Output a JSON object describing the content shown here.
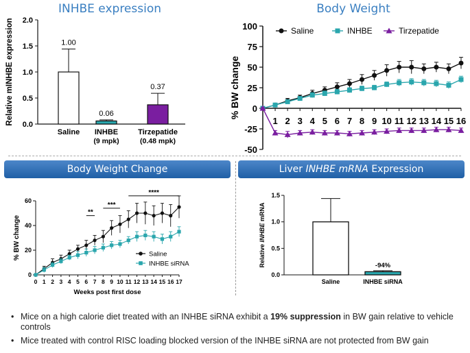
{
  "chart_data": [
    {
      "type": "bar",
      "title": "INHBE expression",
      "ylabel": "Relative mINHBE expression",
      "ylim": [
        0,
        2.0
      ],
      "yticks": [
        "0.0",
        "0.5",
        "1.0",
        "1.5",
        "2.0"
      ],
      "categories": [
        [
          "Saline",
          ""
        ],
        [
          "INHBE",
          "(9 mpk)"
        ],
        [
          "Tirzepatide",
          "(0.48 mpk)"
        ]
      ],
      "values": [
        1.0,
        0.06,
        0.37
      ],
      "errors": [
        0.44,
        0.02,
        0.22
      ],
      "labels": [
        "1.00",
        "0.06",
        "0.37"
      ],
      "colors": [
        "#ffffff",
        "#2aa6ad",
        "#7a1ea0"
      ]
    },
    {
      "type": "line",
      "title": "Body Weight",
      "ylabel": "% BW change",
      "ylim": [
        -50,
        100
      ],
      "yticks": [
        "-50",
        "-25",
        "0",
        "25",
        "50",
        "75",
        "100"
      ],
      "x": [
        0,
        1,
        2,
        3,
        4,
        5,
        6,
        7,
        8,
        9,
        10,
        11,
        12,
        13,
        14,
        15,
        16
      ],
      "xticks": [
        "1",
        "2",
        "3",
        "4",
        "5",
        "6",
        "7",
        "8",
        "9",
        "10",
        "11",
        "12",
        "13",
        "14",
        "15",
        "16"
      ],
      "series": [
        {
          "name": "Saline",
          "color": "#111111",
          "marker": "circle",
          "values": [
            0,
            4,
            9,
            13,
            18,
            22,
            26,
            30,
            35,
            40,
            46,
            50,
            50,
            48,
            50,
            48,
            55
          ],
          "errors": [
            1,
            2,
            3,
            3,
            4,
            4,
            5,
            5,
            6,
            6,
            7,
            7,
            8,
            6,
            6,
            6,
            7
          ]
        },
        {
          "name": "INHBE",
          "color": "#2aa6ad",
          "marker": "square",
          "values": [
            0,
            4,
            8,
            12,
            16,
            18,
            20,
            22,
            24,
            25,
            29,
            31,
            32,
            31,
            30,
            28,
            35
          ],
          "errors": [
            1,
            2,
            2,
            2,
            3,
            3,
            3,
            3,
            3,
            3,
            3,
            4,
            4,
            4,
            4,
            4,
            4
          ]
        },
        {
          "name": "Tirzepatide",
          "color": "#7a1ea0",
          "marker": "triangle",
          "values": [
            0,
            -30,
            -32,
            -30,
            -29,
            -30,
            -30,
            -31,
            -30,
            -29,
            -28,
            -27,
            -27,
            -27,
            -26,
            -26,
            -27
          ],
          "errors": [
            1,
            3,
            4,
            3,
            3,
            3,
            3,
            3,
            3,
            3,
            3,
            3,
            3,
            3,
            3,
            3,
            3
          ]
        }
      ]
    },
    {
      "type": "line",
      "title": "Body Weight Change",
      "xlabel": "Weeks post first dose",
      "ylabel": "% BW change",
      "ylim": [
        0,
        60
      ],
      "yticks": [
        "0",
        "20",
        "40",
        "60"
      ],
      "x": [
        0,
        1,
        2,
        3,
        4,
        5,
        6,
        7,
        8,
        9,
        10,
        11,
        12,
        13,
        14,
        15,
        16,
        17
      ],
      "xticks": [
        "0",
        "1",
        "2",
        "3",
        "4",
        "5",
        "6",
        "7",
        "8",
        "9",
        "10",
        "11",
        "12",
        "13",
        "14",
        "15",
        "16",
        "17"
      ],
      "series": [
        {
          "name": "Saline",
          "color": "#111111",
          "marker": "circle",
          "values": [
            0,
            5,
            10,
            13,
            17,
            21,
            24,
            28,
            31,
            38,
            41,
            45,
            50,
            50,
            48,
            50,
            48,
            55
          ],
          "errors": [
            1,
            2,
            3,
            3,
            3,
            3,
            4,
            4,
            5,
            6,
            7,
            7,
            8,
            9,
            8,
            8,
            9,
            9
          ]
        },
        {
          "name": "INHBE siRNA",
          "color": "#2aa6ad",
          "marker": "square",
          "values": [
            0,
            4,
            8,
            11,
            14,
            16,
            18,
            20,
            22,
            24,
            25,
            28,
            31,
            32,
            31,
            29,
            31,
            35
          ],
          "errors": [
            1,
            2,
            2,
            2,
            2,
            3,
            3,
            3,
            3,
            3,
            3,
            3,
            4,
            4,
            4,
            4,
            4,
            4
          ]
        }
      ],
      "significance": [
        {
          "from": 6,
          "to": 7,
          "y": 48,
          "label": "**"
        },
        {
          "from": 8,
          "to": 10,
          "y": 54,
          "label": "***"
        },
        {
          "from": 11,
          "to": 17,
          "y": 64,
          "label": "****"
        }
      ]
    },
    {
      "type": "bar",
      "title_parts": [
        "Liver ",
        "INHBE mRNA",
        " Expression"
      ],
      "ylabel_parts": [
        "Relative ",
        "INHBE",
        " mRNA"
      ],
      "ylim": [
        0,
        1.5
      ],
      "yticks": [
        "0.0",
        "0.5",
        "1.0",
        "1.5"
      ],
      "categories": [
        "Saline",
        "INHBE siRNA"
      ],
      "values": [
        1.0,
        0.06
      ],
      "errors": [
        0.44,
        0.02
      ],
      "labels": [
        "",
        "-94%"
      ],
      "colors": [
        "#ffffff",
        "#2aa6ad"
      ]
    }
  ],
  "bullets": [
    {
      "pre": "Mice on a high calorie diet treated with an INHBE siRNA exhibit a ",
      "bold": "19% suppression",
      "post": " in BW gain relative to vehicle controls"
    },
    {
      "pre": "Mice treated with control RISC loading blocked version of the INHBE siRNA are not protected from BW gain",
      "bold": "",
      "post": ""
    }
  ]
}
